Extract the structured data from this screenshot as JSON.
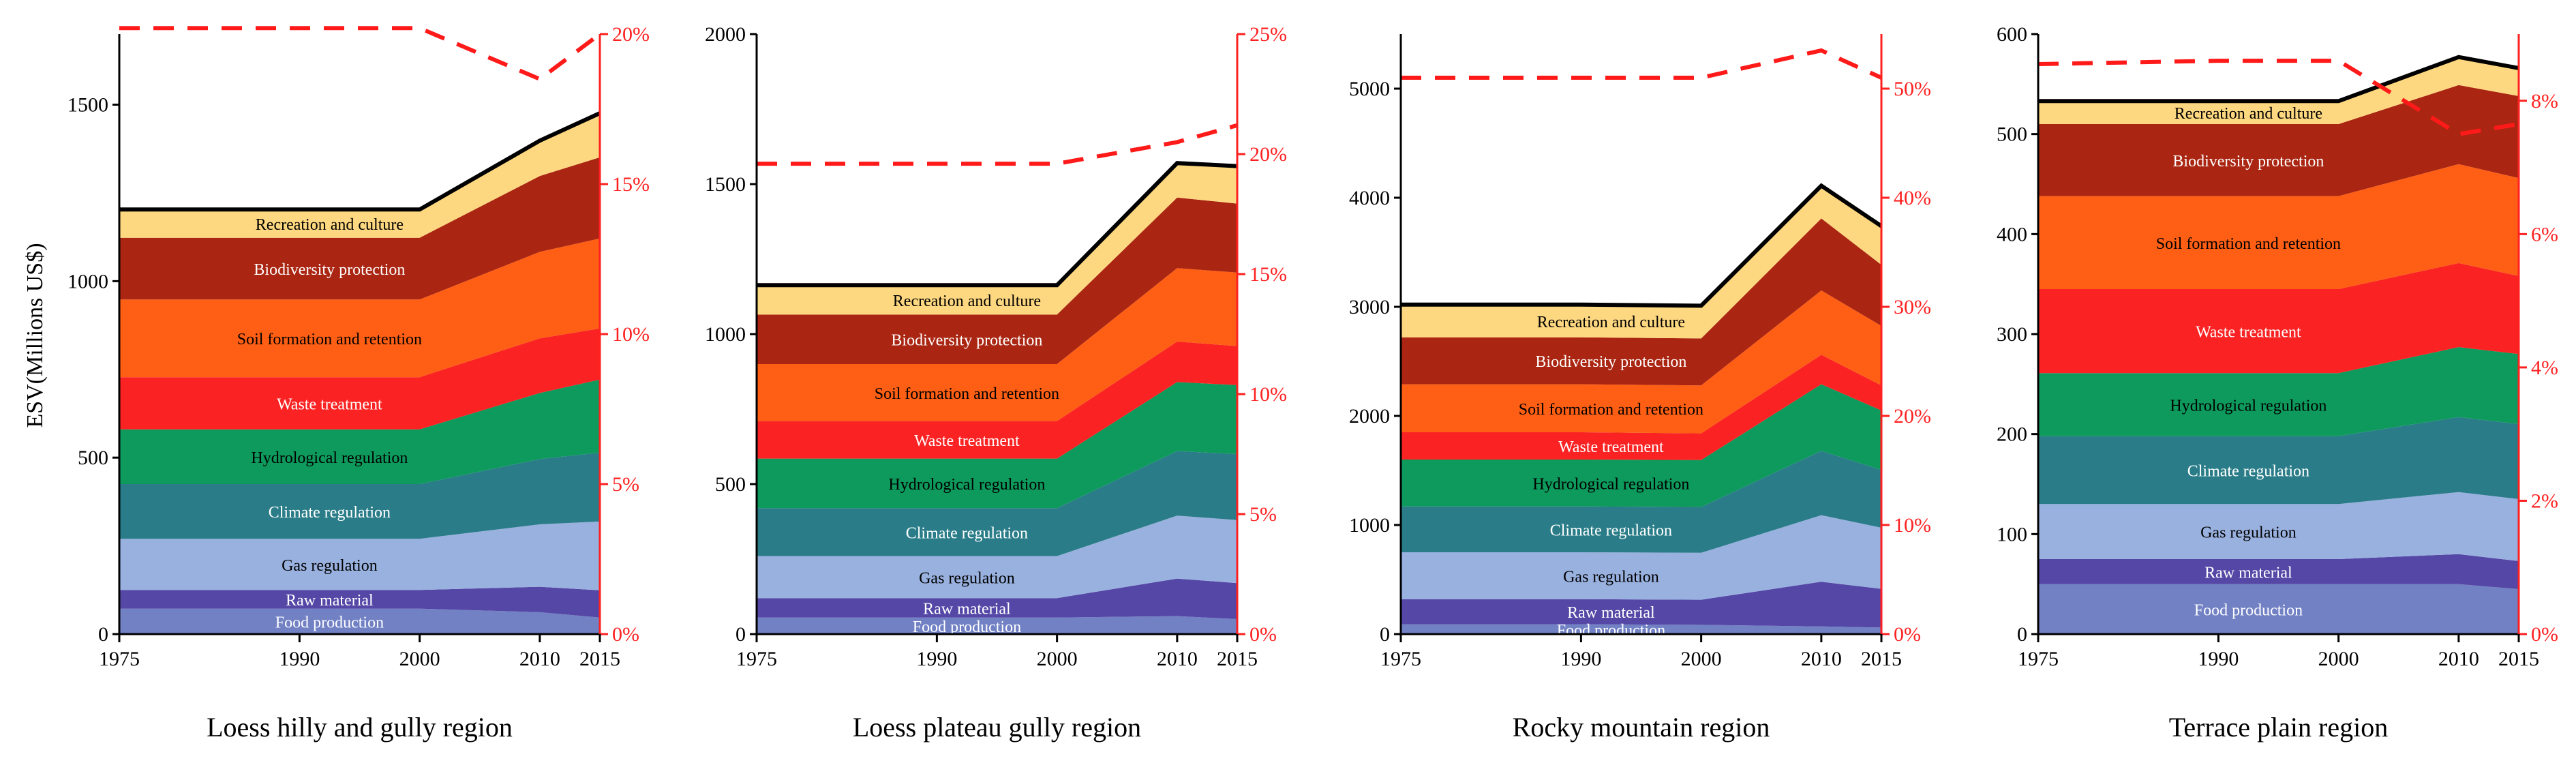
{
  "figure": {
    "ylabel": "ESV(Millions US$)"
  },
  "colors": {
    "Food production": "#7181c4",
    "Raw material": "#5547a6",
    "Gas regulation": "#99b1df",
    "Climate regulation": "#2a7d88",
    "Hydrological regulation": "#0d9a5c",
    "Waste treatment": "#fa2222",
    "Soil formation and retention": "#ff5f14",
    "Biodiversity protection": "#aa2612",
    "Recreation and culture": "#fed880",
    "total_line": "#000000",
    "percent_line": "#ff1a1a",
    "right_axis": "#ff2020"
  },
  "chart_data": [
    {
      "type": "area",
      "title": "Loess hilly and gully region",
      "x": [
        1975,
        1990,
        2000,
        2010,
        2015
      ],
      "xticks": [
        "1975",
        "1990",
        "2000",
        "2010",
        "2015"
      ],
      "ylim": [
        0,
        1700
      ],
      "yticks": [
        "0",
        "500",
        "1000",
        "1500"
      ],
      "y2lim": [
        0,
        0.2
      ],
      "y2ticks": [
        "0%",
        "5%",
        "10%",
        "15%",
        "20%"
      ],
      "series": [
        {
          "name": "Food production",
          "values": [
            72,
            72,
            72,
            62,
            47
          ]
        },
        {
          "name": "Raw material",
          "values": [
            53,
            53,
            53,
            72,
            77
          ]
        },
        {
          "name": "Gas regulation",
          "values": [
            145,
            145,
            145,
            177,
            195
          ]
        },
        {
          "name": "Climate regulation",
          "values": [
            155,
            155,
            155,
            185,
            195
          ]
        },
        {
          "name": "Hydrological regulation",
          "values": [
            155,
            155,
            155,
            187,
            207
          ]
        },
        {
          "name": "Waste treatment",
          "values": [
            148,
            148,
            148,
            155,
            145
          ]
        },
        {
          "name": "Soil formation and retention",
          "values": [
            220,
            220,
            220,
            245,
            255
          ]
        },
        {
          "name": "Biodiversity protection",
          "values": [
            175,
            175,
            175,
            215,
            230
          ]
        },
        {
          "name": "Recreation and culture",
          "values": [
            80,
            80,
            80,
            100,
            125
          ]
        }
      ],
      "percent": [
        0.202,
        0.202,
        0.202,
        0.185,
        0.2
      ]
    },
    {
      "type": "area",
      "title": "Loess plateau gully region",
      "x": [
        1975,
        1990,
        2000,
        2010,
        2015
      ],
      "xticks": [
        "1975",
        "1990",
        "2000",
        "2010",
        "2015"
      ],
      "ylim": [
        0,
        2000
      ],
      "yticks": [
        "0",
        "500",
        "1000",
        "1500",
        "2000"
      ],
      "y2lim": [
        0,
        0.25
      ],
      "y2ticks": [
        "0%",
        "5%",
        "10%",
        "15%",
        "20%",
        "25%"
      ],
      "series": [
        {
          "name": "Food production",
          "values": [
            55,
            55,
            55,
            60,
            50
          ]
        },
        {
          "name": "Raw material",
          "values": [
            65,
            65,
            65,
            125,
            120
          ]
        },
        {
          "name": "Gas regulation",
          "values": [
            140,
            140,
            140,
            210,
            210
          ]
        },
        {
          "name": "Climate regulation",
          "values": [
            160,
            160,
            160,
            215,
            220
          ]
        },
        {
          "name": "Hydrological regulation",
          "values": [
            165,
            165,
            165,
            230,
            230
          ]
        },
        {
          "name": "Waste treatment",
          "values": [
            125,
            125,
            125,
            135,
            130
          ]
        },
        {
          "name": "Soil formation and retention",
          "values": [
            190,
            190,
            190,
            245,
            245
          ]
        },
        {
          "name": "Biodiversity protection",
          "values": [
            165,
            165,
            165,
            235,
            230
          ]
        },
        {
          "name": "Recreation and culture",
          "values": [
            98,
            98,
            98,
            115,
            125
          ]
        }
      ],
      "percent": [
        0.196,
        0.196,
        0.196,
        0.205,
        0.212
      ]
    },
    {
      "type": "area",
      "title": "Rocky mountain region",
      "x": [
        1975,
        1990,
        2000,
        2010,
        2015
      ],
      "xticks": [
        "1975",
        "1990",
        "2000",
        "2010",
        "2015"
      ],
      "ylim": [
        0,
        5500
      ],
      "yticks": [
        "0",
        "1000",
        "2000",
        "3000",
        "4000",
        "5000"
      ],
      "y2lim": [
        0,
        0.55
      ],
      "y2ticks": [
        "0%",
        "10%",
        "20%",
        "30%",
        "40%",
        "50%"
      ],
      "series": [
        {
          "name": "Food production",
          "values": [
            90,
            90,
            85,
            70,
            60
          ]
        },
        {
          "name": "Raw material",
          "values": [
            230,
            230,
            230,
            410,
            355
          ]
        },
        {
          "name": "Gas regulation",
          "values": [
            430,
            430,
            430,
            610,
            560
          ]
        },
        {
          "name": "Climate regulation",
          "values": [
            420,
            420,
            420,
            590,
            530
          ]
        },
        {
          "name": "Hydrological regulation",
          "values": [
            430,
            430,
            430,
            610,
            545
          ]
        },
        {
          "name": "Waste treatment",
          "values": [
            250,
            250,
            245,
            270,
            230
          ]
        },
        {
          "name": "Soil formation and retention",
          "values": [
            440,
            440,
            440,
            590,
            545
          ]
        },
        {
          "name": "Biodiversity protection",
          "values": [
            430,
            430,
            430,
            660,
            560
          ]
        },
        {
          "name": "Recreation and culture",
          "values": [
            300,
            300,
            300,
            300,
            355
          ]
        }
      ],
      "percent": [
        0.51,
        0.51,
        0.51,
        0.535,
        0.51
      ]
    },
    {
      "type": "area",
      "title": "Terrace plain region",
      "x": [
        1975,
        1990,
        2000,
        2010,
        2015
      ],
      "xticks": [
        "1975",
        "1990",
        "2000",
        "2010",
        "2015"
      ],
      "ylim": [
        0,
        600
      ],
      "yticks": [
        "0",
        "100",
        "200",
        "300",
        "400",
        "500",
        "600"
      ],
      "y2lim": [
        0,
        0.09
      ],
      "y2ticks": [
        "0%",
        "2%",
        "4%",
        "6%",
        "8%"
      ],
      "series": [
        {
          "name": "Food production",
          "values": [
            50,
            50,
            50,
            50,
            45
          ]
        },
        {
          "name": "Raw material",
          "values": [
            25,
            25,
            25,
            30,
            28
          ]
        },
        {
          "name": "Gas regulation",
          "values": [
            55,
            55,
            55,
            62,
            62
          ]
        },
        {
          "name": "Climate regulation",
          "values": [
            68,
            68,
            68,
            75,
            75
          ]
        },
        {
          "name": "Hydrological regulation",
          "values": [
            63,
            63,
            63,
            70,
            70
          ]
        },
        {
          "name": "Waste treatment",
          "values": [
            84,
            84,
            84,
            84,
            78
          ]
        },
        {
          "name": "Soil formation and retention",
          "values": [
            93,
            93,
            93,
            99,
            98
          ]
        },
        {
          "name": "Biodiversity protection",
          "values": [
            72,
            72,
            72,
            79,
            82
          ]
        },
        {
          "name": "Recreation and culture",
          "values": [
            23,
            23,
            23,
            28,
            28
          ]
        }
      ],
      "percent": [
        0.0855,
        0.086,
        0.086,
        0.075,
        0.0765
      ]
    }
  ]
}
